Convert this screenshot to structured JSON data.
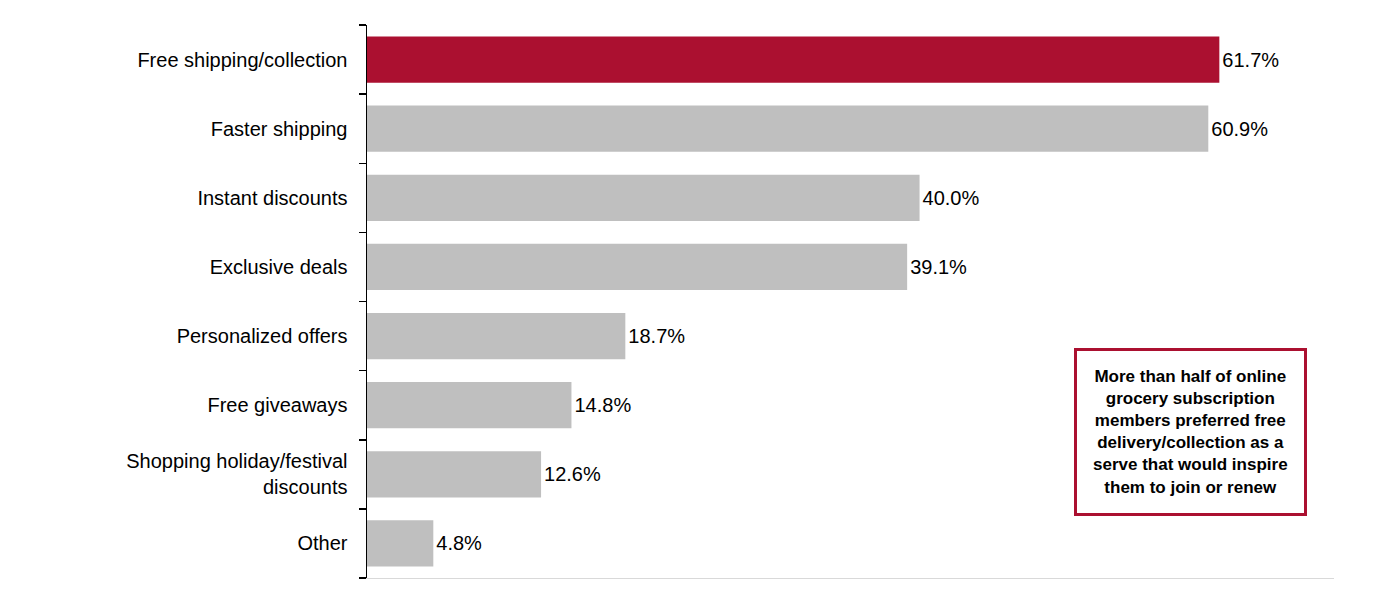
{
  "chart_data": {
    "type": "bar",
    "orientation": "horizontal",
    "categories": [
      "Free shipping/collection",
      "Faster shipping",
      "Instant discounts",
      "Exclusive deals",
      "Personalized offers",
      "Free giveaways",
      "Shopping holiday/festival discounts",
      "Other"
    ],
    "values": [
      61.7,
      60.9,
      40.0,
      39.1,
      18.7,
      14.8,
      12.6,
      4.8
    ],
    "value_labels": [
      "61.7%",
      "60.9%",
      "40.0%",
      "39.1%",
      "18.7%",
      "14.8%",
      "12.6%",
      "4.8%"
    ],
    "colors": [
      "#ab1030",
      "#bfbfbf",
      "#bfbfbf",
      "#bfbfbf",
      "#bfbfbf",
      "#bfbfbf",
      "#bfbfbf",
      "#bfbfbf"
    ],
    "data_labels": true,
    "tick_labels": "y",
    "grid": false,
    "xlim": [
      0,
      70
    ],
    "xticks": [],
    "annotations": [
      "More than half of online grocery subscription members preferred free delivery/collection as a serve that would inspire them to join or renew"
    ]
  }
}
